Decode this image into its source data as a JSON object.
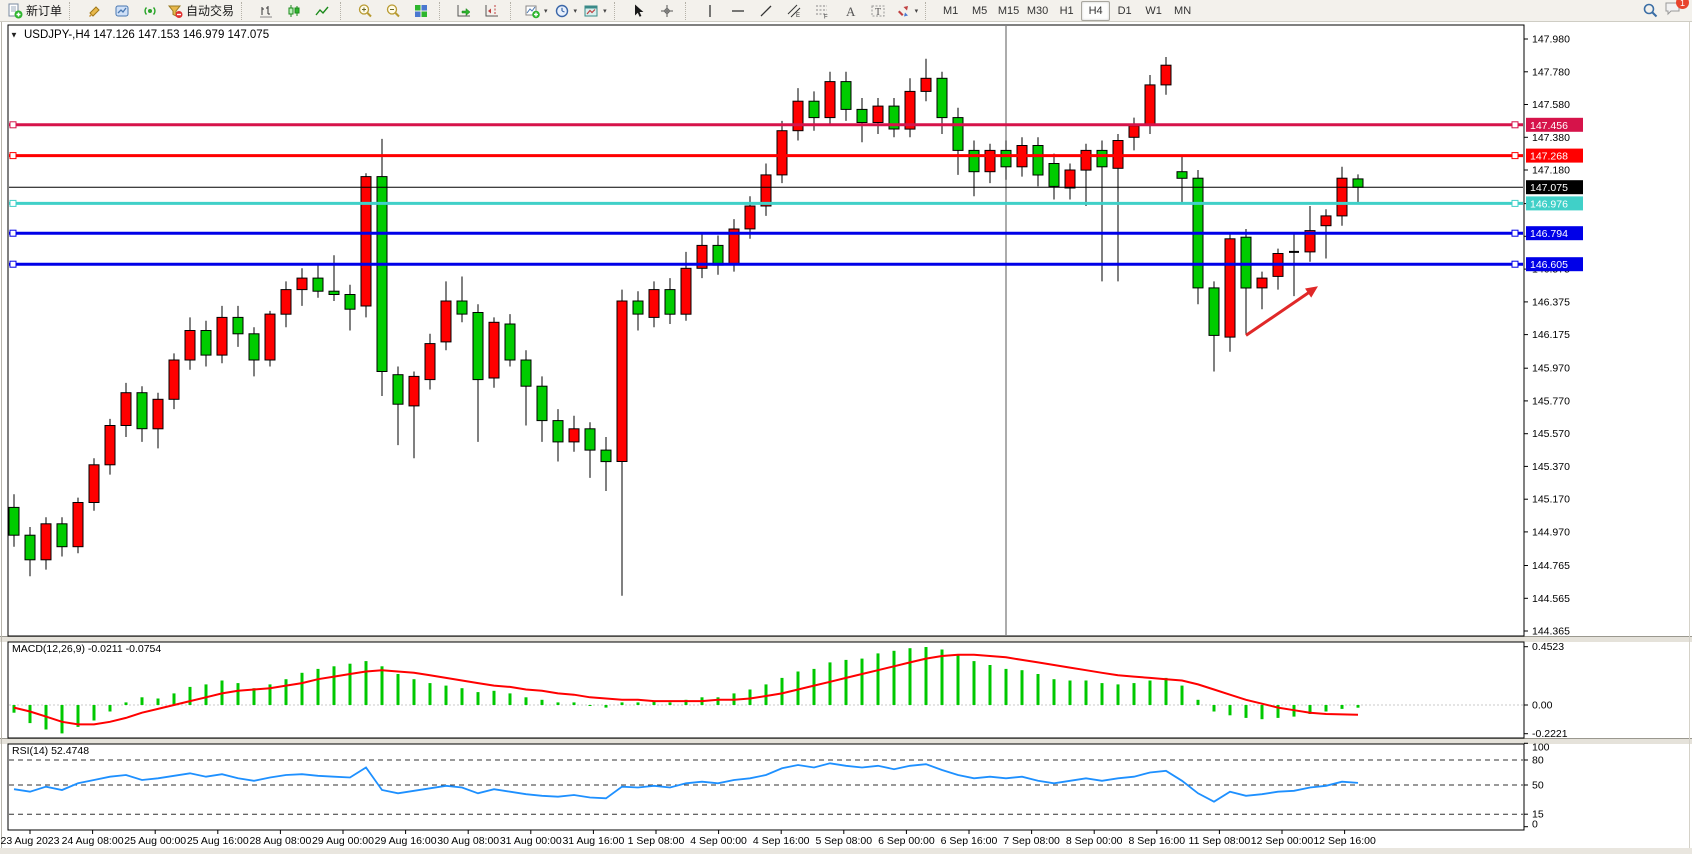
{
  "toolbar": {
    "new_order_label": "新订单",
    "auto_trading_label": "自动交易",
    "timeframes": [
      "M1",
      "M5",
      "M15",
      "M30",
      "H1",
      "H4",
      "D1",
      "W1",
      "MN"
    ],
    "active_timeframe": "H4",
    "notification_count": "1"
  },
  "icons": {
    "chart_menu": "▼",
    "dropdown_caret": "▾"
  },
  "title": {
    "symbol_period": "USDJPY-,H4",
    "ohlc": "147.126 147.153 146.979 147.075"
  },
  "indicators": {
    "macd_label": "MACD(12,26,9) -0.0211 -0.0754",
    "rsi_label": "RSI(14) 52.4748"
  },
  "colors": {
    "bull": "#FF0000",
    "bear": "#00CC00",
    "wick": "#000000",
    "macd_hist": "#00C800",
    "macd_signal": "#FF0000",
    "rsi_line": "#1E90FF",
    "line_crimson": "#D6134A",
    "line_red": "#FF0000",
    "line_cyan": "#40D0C8",
    "line_blue": "#0000E8",
    "bid_black": "#000000",
    "arrow_red": "#E02828"
  },
  "chart_data": {
    "type": "candlestick",
    "title": "USDJPY- H4",
    "price_min": 144.365,
    "price_max": 147.98,
    "price_ticks": [
      "147.980",
      "147.780",
      "147.580",
      "147.380",
      "147.180",
      "146.975",
      "146.775",
      "146.575",
      "146.375",
      "146.175",
      "145.970",
      "145.770",
      "145.570",
      "145.370",
      "145.170",
      "144.970",
      "144.765",
      "144.565",
      "144.365"
    ],
    "hlines": [
      {
        "value": 147.456,
        "label": "147.456",
        "color_key": "line_crimson",
        "width": 3
      },
      {
        "value": 147.268,
        "label": "147.268",
        "color_key": "line_red",
        "width": 3
      },
      {
        "value": 146.976,
        "label": "146.976",
        "color_key": "line_cyan",
        "width": 3
      },
      {
        "value": 146.794,
        "label": "146.794",
        "color_key": "line_blue",
        "width": 3
      },
      {
        "value": 146.605,
        "label": "146.605",
        "color_key": "line_blue",
        "width": 3
      }
    ],
    "bid_line": {
      "value": 147.075,
      "label": "147.075"
    },
    "vertical_line_bar": 62,
    "trend_arrow": {
      "from_bar": 77,
      "from_price": 146.17,
      "to_bar": 81,
      "to_price": 146.47
    },
    "candles": [
      [
        145.12,
        145.2,
        144.88,
        144.95
      ],
      [
        144.95,
        145.0,
        144.7,
        144.8
      ],
      [
        144.8,
        145.06,
        144.74,
        145.02
      ],
      [
        145.02,
        145.06,
        144.82,
        144.88
      ],
      [
        144.88,
        145.18,
        144.84,
        145.15
      ],
      [
        145.15,
        145.42,
        145.1,
        145.38
      ],
      [
        145.38,
        145.66,
        145.32,
        145.62
      ],
      [
        145.62,
        145.88,
        145.55,
        145.82
      ],
      [
        145.82,
        145.86,
        145.52,
        145.6
      ],
      [
        145.6,
        145.82,
        145.48,
        145.78
      ],
      [
        145.78,
        146.06,
        145.72,
        146.02
      ],
      [
        146.02,
        146.28,
        145.96,
        146.2
      ],
      [
        146.2,
        146.26,
        145.98,
        146.05
      ],
      [
        146.05,
        146.35,
        146.0,
        146.28
      ],
      [
        146.28,
        146.35,
        146.1,
        146.18
      ],
      [
        146.18,
        146.22,
        145.92,
        146.02
      ],
      [
        146.02,
        146.32,
        145.98,
        146.3
      ],
      [
        146.3,
        146.5,
        146.22,
        146.45
      ],
      [
        146.45,
        146.58,
        146.35,
        146.52
      ],
      [
        146.52,
        146.6,
        146.4,
        146.44
      ],
      [
        146.44,
        146.66,
        146.38,
        146.42
      ],
      [
        146.42,
        146.48,
        146.2,
        146.33
      ],
      [
        146.35,
        147.16,
        146.28,
        147.14
      ],
      [
        147.14,
        147.37,
        145.8,
        145.95
      ],
      [
        145.93,
        145.98,
        145.5,
        145.75
      ],
      [
        145.74,
        145.95,
        145.42,
        145.92
      ],
      [
        145.9,
        146.18,
        145.84,
        146.12
      ],
      [
        146.13,
        146.5,
        146.08,
        146.38
      ],
      [
        146.38,
        146.53,
        146.25,
        146.3
      ],
      [
        146.31,
        146.36,
        145.52,
        145.9
      ],
      [
        145.91,
        146.28,
        145.85,
        146.25
      ],
      [
        146.24,
        146.3,
        145.98,
        146.02
      ],
      [
        146.02,
        146.08,
        145.62,
        145.86
      ],
      [
        145.86,
        145.92,
        145.52,
        145.65
      ],
      [
        145.65,
        145.72,
        145.4,
        145.52
      ],
      [
        145.52,
        145.68,
        145.46,
        145.6
      ],
      [
        145.6,
        145.64,
        145.3,
        145.47
      ],
      [
        145.47,
        145.55,
        145.22,
        145.4
      ],
      [
        145.4,
        146.45,
        144.58,
        146.38
      ],
      [
        146.38,
        146.44,
        146.2,
        146.3
      ],
      [
        146.28,
        146.5,
        146.22,
        146.45
      ],
      [
        146.45,
        146.52,
        146.24,
        146.3
      ],
      [
        146.3,
        146.68,
        146.26,
        146.58
      ],
      [
        146.58,
        146.8,
        146.52,
        146.72
      ],
      [
        146.72,
        146.78,
        146.54,
        146.6
      ],
      [
        146.6,
        146.88,
        146.56,
        146.82
      ],
      [
        146.82,
        147.02,
        146.76,
        146.96
      ],
      [
        146.96,
        147.22,
        146.9,
        147.15
      ],
      [
        147.15,
        147.48,
        147.1,
        147.42
      ],
      [
        147.42,
        147.68,
        147.36,
        147.6
      ],
      [
        147.6,
        147.66,
        147.42,
        147.5
      ],
      [
        147.5,
        147.78,
        147.45,
        147.72
      ],
      [
        147.72,
        147.78,
        147.48,
        147.55
      ],
      [
        147.55,
        147.62,
        147.35,
        147.47
      ],
      [
        147.47,
        147.62,
        147.4,
        147.57
      ],
      [
        147.57,
        147.62,
        147.38,
        147.43
      ],
      [
        147.43,
        147.74,
        147.38,
        147.66
      ],
      [
        147.66,
        147.86,
        147.6,
        147.74
      ],
      [
        147.74,
        147.78,
        147.4,
        147.5
      ],
      [
        147.5,
        147.56,
        147.15,
        147.3
      ],
      [
        147.3,
        147.36,
        147.02,
        147.17
      ],
      [
        147.17,
        147.34,
        147.1,
        147.3
      ],
      [
        147.3,
        147.36,
        147.12,
        147.2
      ],
      [
        147.2,
        147.38,
        147.14,
        147.33
      ],
      [
        147.33,
        147.38,
        147.08,
        147.15
      ],
      [
        147.22,
        147.28,
        147.0,
        147.08
      ],
      [
        147.07,
        147.22,
        147.0,
        147.18
      ],
      [
        147.18,
        147.34,
        146.96,
        147.3
      ],
      [
        147.3,
        147.36,
        146.5,
        147.2
      ],
      [
        147.19,
        147.4,
        146.5,
        147.36
      ],
      [
        147.38,
        147.5,
        147.3,
        147.45
      ],
      [
        147.46,
        147.76,
        147.4,
        147.7
      ],
      [
        147.7,
        147.87,
        147.64,
        147.82
      ],
      [
        147.17,
        147.26,
        146.98,
        147.13
      ],
      [
        147.13,
        147.18,
        146.36,
        146.46
      ],
      [
        146.46,
        146.5,
        145.95,
        146.17
      ],
      [
        146.16,
        146.8,
        146.07,
        146.76
      ],
      [
        146.77,
        146.82,
        146.18,
        146.46
      ],
      [
        146.46,
        146.56,
        146.33,
        146.52
      ],
      [
        146.53,
        146.7,
        146.45,
        146.67
      ],
      [
        146.68,
        146.8,
        146.41,
        146.68
      ],
      [
        146.68,
        146.96,
        146.62,
        146.81
      ],
      [
        146.84,
        146.94,
        146.64,
        146.9
      ],
      [
        146.9,
        147.2,
        146.84,
        147.13
      ],
      [
        147.126,
        147.153,
        146.979,
        147.075
      ]
    ],
    "macd": {
      "axis_labels": [
        "0.4523",
        "0.00",
        "-0.2221"
      ],
      "axis_values": [
        0.4523,
        0.0,
        -0.2221
      ],
      "histogram": [
        -0.06,
        -0.14,
        -0.19,
        -0.22,
        -0.17,
        -0.12,
        -0.05,
        0.02,
        0.06,
        0.05,
        0.09,
        0.14,
        0.16,
        0.19,
        0.17,
        0.13,
        0.16,
        0.2,
        0.25,
        0.28,
        0.3,
        0.32,
        0.34,
        0.3,
        0.24,
        0.2,
        0.17,
        0.15,
        0.13,
        0.1,
        0.11,
        0.09,
        0.06,
        0.04,
        0.02,
        0.02,
        0.0,
        -0.02,
        0.02,
        0.02,
        0.03,
        0.02,
        0.04,
        0.06,
        0.06,
        0.09,
        0.12,
        0.16,
        0.21,
        0.26,
        0.28,
        0.33,
        0.35,
        0.36,
        0.4,
        0.42,
        0.44,
        0.45,
        0.43,
        0.39,
        0.34,
        0.31,
        0.28,
        0.27,
        0.24,
        0.2,
        0.19,
        0.19,
        0.17,
        0.16,
        0.17,
        0.19,
        0.21,
        0.15,
        0.04,
        -0.05,
        -0.08,
        -0.1,
        -0.11,
        -0.1,
        -0.09,
        -0.07,
        -0.05,
        -0.03,
        -0.0211
      ],
      "signal": [
        -0.02,
        -0.05,
        -0.09,
        -0.13,
        -0.15,
        -0.15,
        -0.13,
        -0.1,
        -0.06,
        -0.03,
        0.0,
        0.03,
        0.06,
        0.09,
        0.11,
        0.12,
        0.13,
        0.15,
        0.17,
        0.2,
        0.22,
        0.24,
        0.26,
        0.27,
        0.26,
        0.25,
        0.23,
        0.21,
        0.19,
        0.17,
        0.15,
        0.14,
        0.12,
        0.11,
        0.09,
        0.08,
        0.06,
        0.05,
        0.04,
        0.04,
        0.03,
        0.03,
        0.03,
        0.03,
        0.04,
        0.04,
        0.05,
        0.07,
        0.09,
        0.12,
        0.15,
        0.18,
        0.21,
        0.24,
        0.27,
        0.3,
        0.33,
        0.36,
        0.38,
        0.39,
        0.39,
        0.38,
        0.37,
        0.35,
        0.33,
        0.31,
        0.29,
        0.27,
        0.25,
        0.23,
        0.22,
        0.21,
        0.2,
        0.19,
        0.16,
        0.12,
        0.08,
        0.04,
        0.01,
        -0.02,
        -0.04,
        -0.06,
        -0.07,
        -0.073,
        -0.0754
      ]
    },
    "rsi": {
      "axis_labels": [
        "100",
        "80",
        "50",
        "15",
        "0"
      ],
      "levels": [
        80,
        50,
        15
      ],
      "values": [
        45,
        42,
        48,
        44,
        52,
        56,
        60,
        62,
        56,
        58,
        61,
        64,
        60,
        63,
        58,
        55,
        59,
        62,
        63,
        61,
        60,
        59,
        71,
        44,
        40,
        43,
        46,
        49,
        47,
        40,
        45,
        42,
        39,
        37,
        36,
        38,
        35,
        34,
        48,
        47,
        49,
        47,
        52,
        54,
        52,
        56,
        58,
        62,
        70,
        74,
        71,
        76,
        73,
        71,
        73,
        69,
        73,
        75,
        68,
        62,
        58,
        60,
        58,
        60,
        55,
        52,
        55,
        58,
        55,
        58,
        60,
        65,
        67,
        55,
        40,
        30,
        42,
        37,
        39,
        42,
        43,
        47,
        49,
        54,
        52.4748
      ]
    },
    "date_labels": [
      "23 Aug 2023",
      "24 Aug 08:00",
      "25 Aug 00:00",
      "25 Aug 16:00",
      "28 Aug 08:00",
      "29 Aug 00:00",
      "29 Aug 16:00",
      "30 Aug 08:00",
      "31 Aug 00:00",
      "31 Aug 16:00",
      "1 Sep 08:00",
      "4 Sep 00:00",
      "4 Sep 16:00",
      "5 Sep 08:00",
      "6 Sep 00:00",
      "6 Sep 16:00",
      "7 Sep 08:00",
      "8 Sep 00:00",
      "8 Sep 16:00",
      "11 Sep 08:00",
      "12 Sep 00:00",
      "12 Sep 16:00"
    ]
  }
}
